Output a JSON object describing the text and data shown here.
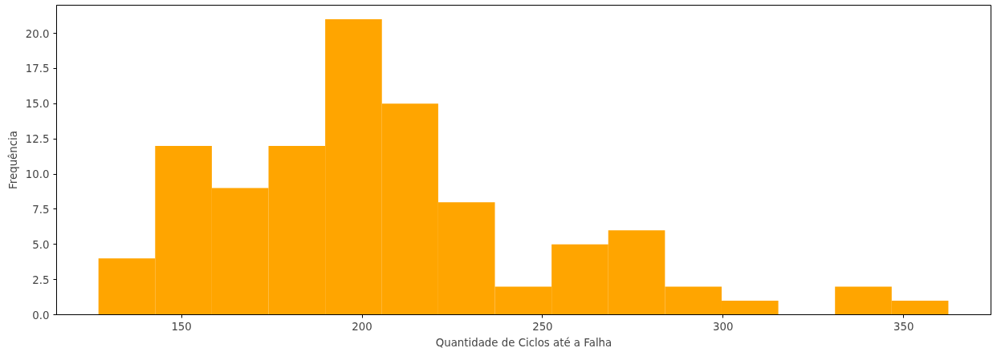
{
  "chart_data": {
    "type": "histogram",
    "xlabel": "Quantidade de Ciclos até a Falha",
    "ylabel": "Frequência",
    "bins": [
      127.0,
      142.7,
      158.4,
      174.1,
      189.8,
      205.5,
      221.1,
      236.8,
      252.5,
      268.2,
      283.9,
      299.6,
      315.3,
      331.0,
      346.7,
      362.4
    ],
    "values": [
      4,
      12,
      9,
      12,
      21,
      15,
      8,
      2,
      5,
      6,
      2,
      1,
      0,
      2,
      1
    ],
    "color": "#ffa500",
    "xlim": [
      115.4,
      374.2
    ],
    "xticks": [
      150,
      200,
      250,
      300,
      350
    ],
    "ylim": [
      0,
      22
    ],
    "yticks": [
      {
        "value": 0,
        "label": "0.0"
      },
      {
        "value": 2.5,
        "label": "2.5"
      },
      {
        "value": 5,
        "label": "5.0"
      },
      {
        "value": 7.5,
        "label": "7.5"
      },
      {
        "value": 10,
        "label": "10.0"
      },
      {
        "value": 12.5,
        "label": "12.5"
      },
      {
        "value": 15,
        "label": "15.0"
      },
      {
        "value": 17.5,
        "label": "17.5"
      },
      {
        "value": 20,
        "label": "20.0"
      }
    ],
    "grid": false
  }
}
